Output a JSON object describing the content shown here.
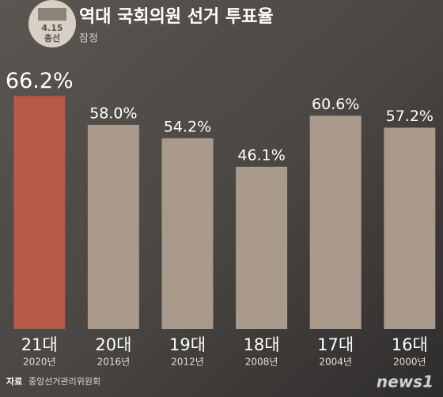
{
  "badge": {
    "date": "4.15",
    "label": "총선"
  },
  "chart_data": {
    "type": "bar",
    "title": "역대 국회의원 선거 투표율",
    "subtitle": "잠정",
    "categories": [
      "21대",
      "20대",
      "19대",
      "18대",
      "17대",
      "16대"
    ],
    "years": [
      "2020년",
      "2016년",
      "2012년",
      "2008년",
      "2004년",
      "2000년"
    ],
    "values": [
      66.2,
      58.0,
      54.2,
      46.1,
      60.6,
      57.2
    ],
    "value_labels": [
      "66.2%",
      "58.0%",
      "54.2%",
      "46.1%",
      "60.6%",
      "57.2%"
    ],
    "colors": [
      "#b65a46",
      "#a99a8b",
      "#a99a8b",
      "#a99a8b",
      "#a99a8b",
      "#a99a8b"
    ]
  },
  "source": {
    "label": "자료",
    "text": "중앙선거관리위원회"
  },
  "watermark": "news1"
}
